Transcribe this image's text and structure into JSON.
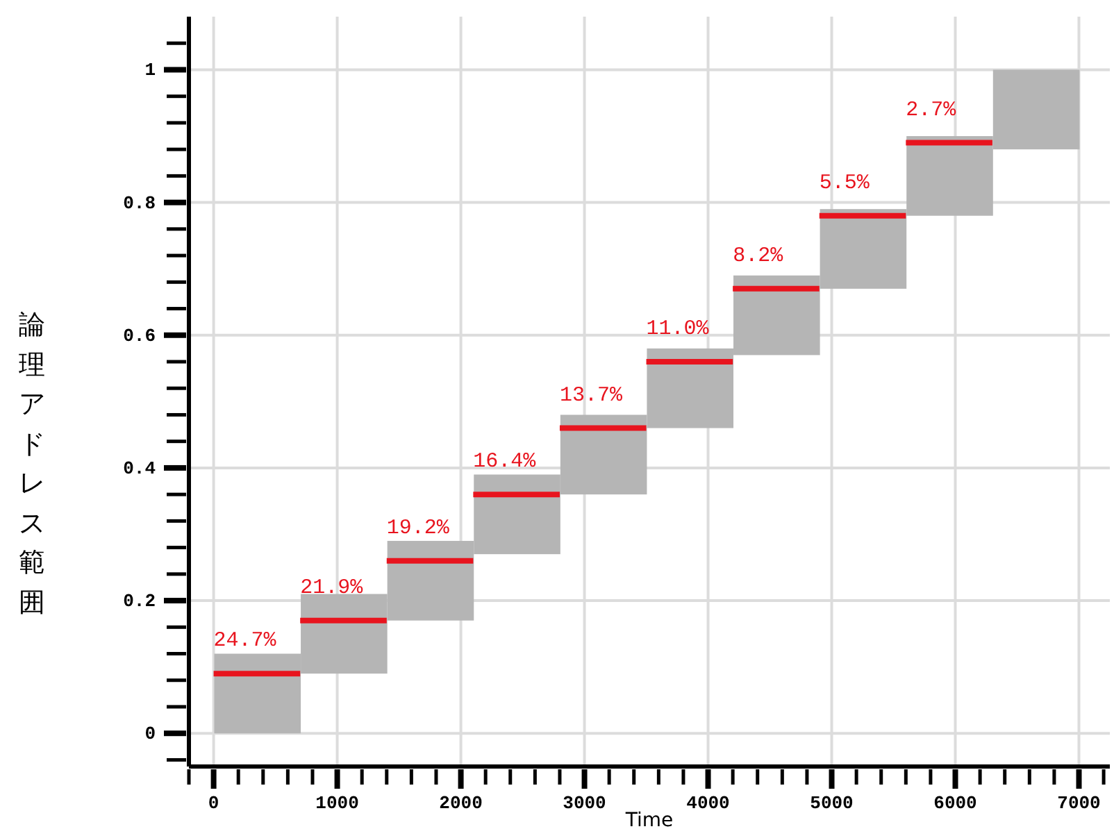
{
  "chart_data": {
    "type": "bar",
    "xlabel": "Time",
    "ylabel": "論理アドレス範囲",
    "xlim": [
      -200,
      7250
    ],
    "ylim": [
      -0.05,
      1.08
    ],
    "xticks": [
      {
        "value": -200,
        "label": null
      },
      0,
      {
        "value": 200,
        "label": null
      },
      {
        "value": 400,
        "label": null
      },
      {
        "value": 600,
        "label": null
      },
      {
        "value": 800,
        "label": null
      },
      1000,
      {
        "value": 1200,
        "label": null
      },
      {
        "value": 1400,
        "label": null
      },
      {
        "value": 1600,
        "label": null
      },
      {
        "value": 1800,
        "label": null
      },
      2000,
      {
        "value": 2200,
        "label": null
      },
      {
        "value": 2400,
        "label": null
      },
      {
        "value": 2600,
        "label": null
      },
      {
        "value": 2800,
        "label": null
      },
      3000,
      {
        "value": 3200,
        "label": null
      },
      {
        "value": 3400,
        "label": null
      },
      {
        "value": 3600,
        "label": null
      },
      {
        "value": 3800,
        "label": null
      },
      4000,
      {
        "value": 4200,
        "label": null
      },
      {
        "value": 4400,
        "label": null
      },
      {
        "value": 4600,
        "label": null
      },
      {
        "value": 4800,
        "label": null
      },
      5000,
      {
        "value": 5200,
        "label": null
      },
      {
        "value": 5400,
        "label": null
      },
      {
        "value": 5600,
        "label": null
      },
      {
        "value": 5800,
        "label": null
      },
      6000,
      {
        "value": 6200,
        "label": null
      },
      {
        "value": 6400,
        "label": null
      },
      {
        "value": 6600,
        "label": null
      },
      {
        "value": 6800,
        "label": null
      },
      7000,
      {
        "value": 7200,
        "label": null
      }
    ],
    "yticks": [
      {
        "value": -0.04,
        "label": null
      },
      0,
      {
        "value": 0.04,
        "label": null
      },
      {
        "value": 0.08,
        "label": null
      },
      {
        "value": 0.12,
        "label": null
      },
      {
        "value": 0.16,
        "label": null
      },
      0.2,
      {
        "value": 0.24,
        "label": null
      },
      {
        "value": 0.28,
        "label": null
      },
      {
        "value": 0.32,
        "label": null
      },
      {
        "value": 0.36,
        "label": null
      },
      0.4,
      {
        "value": 0.44,
        "label": null
      },
      {
        "value": 0.48,
        "label": null
      },
      {
        "value": 0.52,
        "label": null
      },
      {
        "value": 0.56,
        "label": null
      },
      0.6,
      {
        "value": 0.64,
        "label": null
      },
      {
        "value": 0.68,
        "label": null
      },
      {
        "value": 0.72,
        "label": null
      },
      {
        "value": 0.76,
        "label": null
      },
      0.8,
      {
        "value": 0.84,
        "label": null
      },
      {
        "value": 0.88,
        "label": null
      },
      {
        "value": 0.92,
        "label": null
      },
      {
        "value": 0.96,
        "label": null
      },
      1,
      {
        "value": 1.04,
        "label": null
      }
    ],
    "grid": true,
    "series": [
      {
        "color": "#b5b5b5",
        "x": [
          350,
          1050,
          1750,
          2450,
          3150,
          3850,
          4550,
          5250,
          5950,
          6650
        ],
        "base": [
          0,
          0.09,
          0.17,
          0.27,
          0.36,
          0.46,
          0.57,
          0.67,
          0.78,
          0.88
        ],
        "values": [
          0.12,
          0.12,
          0.12,
          0.12,
          0.12,
          0.12,
          0.12,
          0.12,
          0.12,
          0.12
        ]
      },
      {
        "type": "line",
        "color": "#e8141e",
        "x": [
          0,
          700
        ],
        "values": [
          0.09,
          0.09
        ],
        "line_style": "solid"
      },
      {
        "type": "line",
        "color": "#e8141e",
        "x": [
          700,
          1400
        ],
        "values": [
          0.17,
          0.17
        ],
        "line_style": "solid"
      },
      {
        "type": "line",
        "color": "#e8141e",
        "x": [
          1400,
          2100
        ],
        "values": [
          0.26,
          0.26
        ],
        "line_style": "solid"
      },
      {
        "type": "line",
        "color": "#e8141e",
        "x": [
          2100,
          2800
        ],
        "values": [
          0.36,
          0.36
        ],
        "line_style": "solid"
      },
      {
        "type": "line",
        "color": "#e8141e",
        "x": [
          2800,
          3500
        ],
        "values": [
          0.46,
          0.46
        ],
        "line_style": "solid"
      },
      {
        "type": "line",
        "color": "#e8141e",
        "x": [
          3500,
          4200
        ],
        "values": [
          0.56,
          0.56
        ],
        "line_style": "solid"
      },
      {
        "type": "line",
        "color": "#e8141e",
        "x": [
          4200,
          4900
        ],
        "values": [
          0.67,
          0.67
        ],
        "line_style": "solid"
      },
      {
        "type": "line",
        "color": "#e8141e",
        "x": [
          4900,
          5600
        ],
        "values": [
          0.78,
          0.78
        ],
        "line_style": "solid"
      },
      {
        "type": "line",
        "color": "#e8141e",
        "x": [
          5600,
          6300
        ],
        "values": [
          0.89,
          0.89
        ],
        "line_style": "solid"
      }
    ],
    "annotations": [
      {
        "text": "24.7%",
        "x": 0,
        "y": 0.09
      },
      {
        "text": "21.9%",
        "x": 700,
        "y": 0.17
      },
      {
        "text": "19.2%",
        "x": 1400,
        "y": 0.26
      },
      {
        "text": "16.4%",
        "x": 2100,
        "y": 0.36
      },
      {
        "text": "13.7%",
        "x": 2800,
        "y": 0.46
      },
      {
        "text": "11.0%",
        "x": 3500,
        "y": 0.56
      },
      {
        "text": "8.2%",
        "x": 4200,
        "y": 0.67
      },
      {
        "text": "5.5%",
        "x": 4900,
        "y": 0.78
      },
      {
        "text": "2.7%",
        "x": 5600,
        "y": 0.89
      }
    ]
  }
}
